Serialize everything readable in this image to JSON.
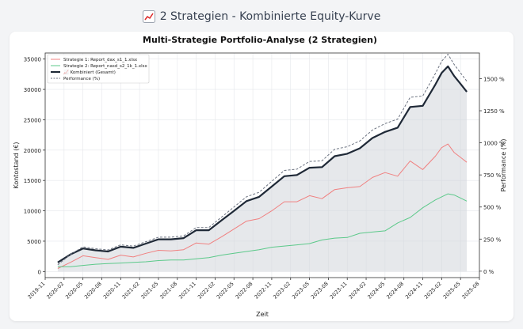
{
  "page": {
    "icon": "chart-increasing-icon",
    "title": "2 Strategien - Kombinierte Equity-Kurve"
  },
  "chart_data": {
    "type": "line",
    "title": "Multi-Strategie Portfolio-Analyse (2 Strategien)",
    "xlabel": "Zeit",
    "ylabel": "Kontostand (€)",
    "ylabel_right": "Performance (%)",
    "xlim": [
      "2019-11",
      "2025-08"
    ],
    "ylim": [
      -1000,
      36000
    ],
    "ylim_right": [
      -50,
      1700
    ],
    "x_ticks": [
      "2019-11",
      "2020-02",
      "2020-05",
      "2020-08",
      "2020-11",
      "2021-02",
      "2021-05",
      "2021-08",
      "2021-11",
      "2022-02",
      "2022-05",
      "2022-08",
      "2022-11",
      "2023-02",
      "2023-05",
      "2023-08",
      "2023-11",
      "2024-02",
      "2024-05",
      "2024-08",
      "2024-11",
      "2025-02",
      "2025-05",
      "2025-08"
    ],
    "y_ticks": [
      0,
      5000,
      10000,
      15000,
      20000,
      25000,
      30000,
      35000
    ],
    "y_ticks_right": [
      "0 %",
      "250 %",
      "500 %",
      "750 %",
      "1000 %",
      "1250 %",
      "1500 %"
    ],
    "y_ticks_right_values": [
      0,
      250,
      500,
      750,
      1000,
      1250,
      1500
    ],
    "grid": true,
    "legend_position": "top-left",
    "x": [
      "2020-01",
      "2020-03",
      "2020-05",
      "2020-07",
      "2020-09",
      "2020-11",
      "2021-01",
      "2021-03",
      "2021-05",
      "2021-07",
      "2021-09",
      "2021-11",
      "2022-01",
      "2022-03",
      "2022-05",
      "2022-07",
      "2022-09",
      "2022-11",
      "2023-01",
      "2023-03",
      "2023-05",
      "2023-07",
      "2023-09",
      "2023-11",
      "2024-01",
      "2024-03",
      "2024-05",
      "2024-07",
      "2024-09",
      "2024-11",
      "2025-01",
      "2025-02",
      "2025-03",
      "2025-04",
      "2025-05",
      "2025-06"
    ],
    "series": [
      {
        "name": "Strategie 1: Report_dax_s1_1.xlsx",
        "color": "#f08080",
        "width": 1,
        "values": [
          500,
          1500,
          2600,
          2300,
          2000,
          2700,
          2400,
          3000,
          3500,
          3400,
          3600,
          4700,
          4500,
          5700,
          7000,
          8300,
          8700,
          10000,
          11500,
          11500,
          12500,
          12000,
          13500,
          13800,
          14000,
          15500,
          16300,
          15700,
          18200,
          16800,
          19000,
          20400,
          21000,
          19600,
          18800,
          18000
        ]
      },
      {
        "name": "Strategie 2: Report_nasd_s2_1k_1.xlsx",
        "color": "#5cc98a",
        "width": 1,
        "values": [
          800,
          800,
          1000,
          1200,
          1300,
          1400,
          1500,
          1600,
          1800,
          1900,
          1900,
          2100,
          2300,
          2700,
          3000,
          3300,
          3600,
          4000,
          4200,
          4400,
          4600,
          5200,
          5500,
          5600,
          6300,
          6500,
          6700,
          8000,
          8900,
          10500,
          11800,
          12300,
          12800,
          12600,
          12100,
          11600
        ]
      },
      {
        "name": "📈 Kombiniert (Gesamt)",
        "color": "#1f2937",
        "width": 2.2,
        "fill": true,
        "values": [
          1500,
          2800,
          3800,
          3500,
          3300,
          4100,
          3900,
          4600,
          5300,
          5300,
          5500,
          6800,
          6800,
          8400,
          10000,
          11600,
          12300,
          14000,
          15700,
          15900,
          17100,
          17200,
          19000,
          19400,
          20300,
          22000,
          23000,
          23700,
          27100,
          27300,
          30800,
          32700,
          33800,
          32200,
          30900,
          29600
        ]
      },
      {
        "name": "Performance (%)",
        "color": "#6b7280",
        "width": 1,
        "dash": true,
        "axis": "right",
        "values": [
          50,
          130,
          190,
          175,
          165,
          205,
          195,
          230,
          265,
          265,
          275,
          340,
          340,
          420,
          500,
          580,
          615,
          700,
          785,
          795,
          855,
          860,
          950,
          970,
          1015,
          1100,
          1150,
          1185,
          1355,
          1365,
          1540,
          1635,
          1690,
          1610,
          1545,
          1480
        ]
      }
    ]
  }
}
